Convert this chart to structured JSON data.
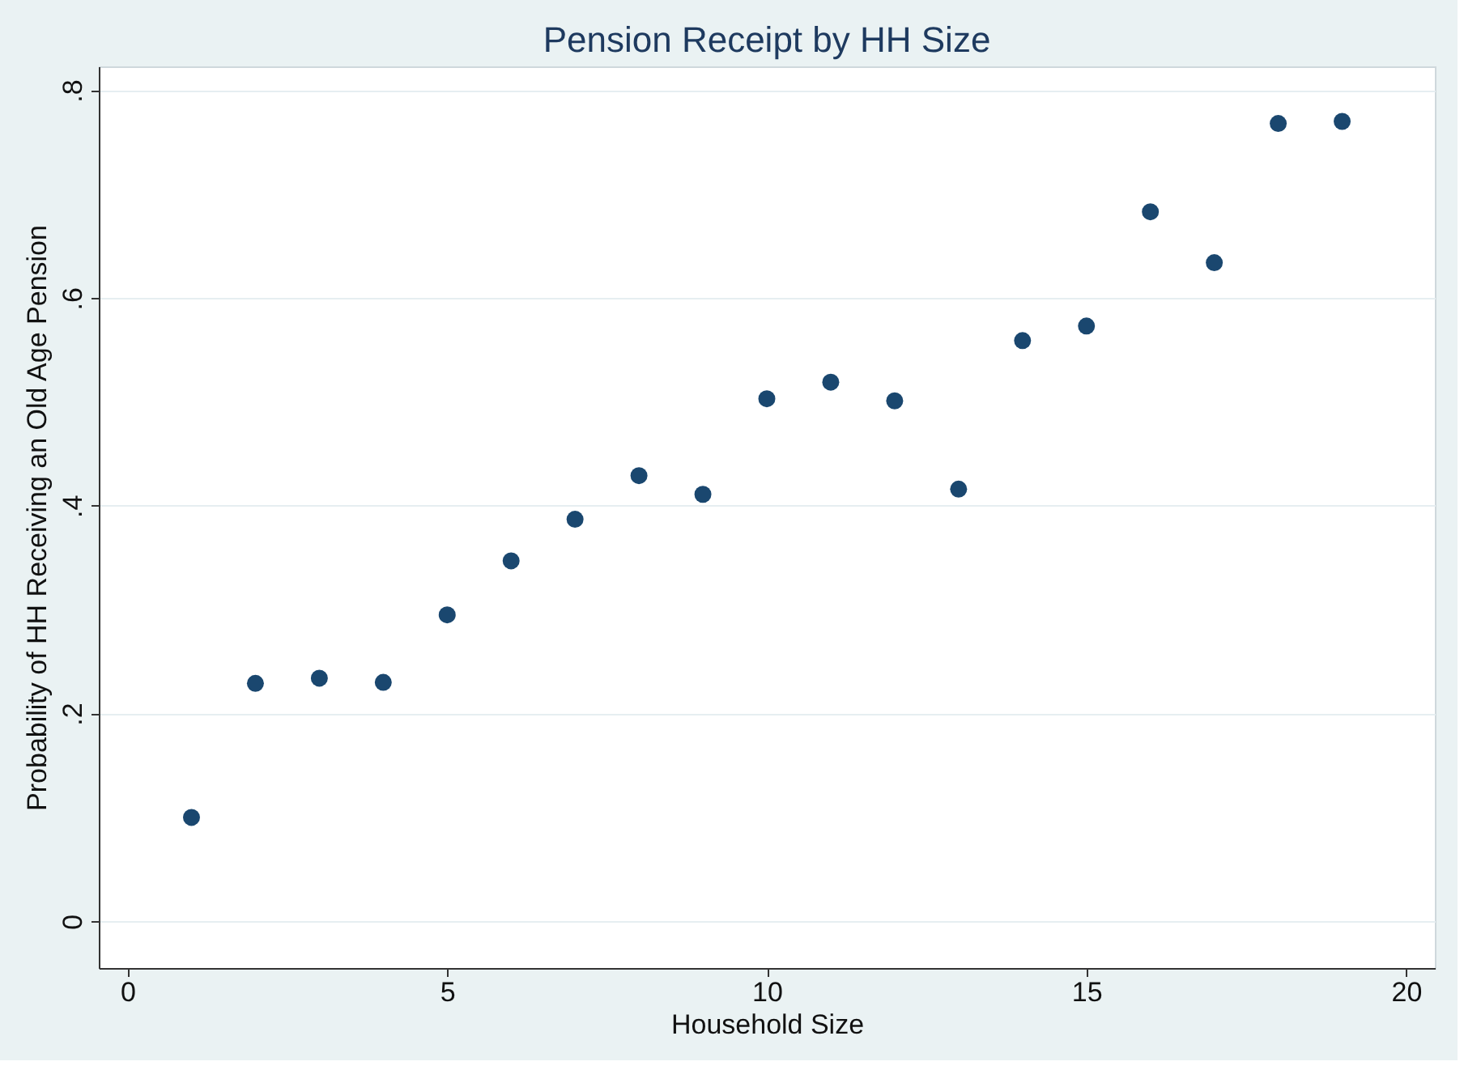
{
  "chart_data": {
    "type": "scatter",
    "title": "Pension Receipt by HH Size",
    "xlabel": "Household Size",
    "ylabel": "Probability of HH Receiving an Old Age Pension",
    "x": [
      1,
      2,
      3,
      4,
      5,
      6,
      7,
      8,
      9,
      10,
      11,
      12,
      13,
      14,
      15,
      16,
      17,
      18,
      19
    ],
    "series": [
      {
        "color": "#1a476f",
        "values": [
          0.1,
          0.229,
          0.234,
          0.23,
          0.295,
          0.347,
          0.387,
          0.429,
          0.411,
          0.503,
          0.519,
          0.501,
          0.416,
          0.559,
          0.573,
          0.683,
          0.634,
          0.768,
          0.77
        ]
      }
    ],
    "xlim": [
      -0.45,
      20.45
    ],
    "ylim": [
      -0.045,
      0.823
    ],
    "xticks": [
      0,
      5,
      10,
      15,
      20
    ],
    "yticks": [
      0,
      {
        "value": 0.2,
        "label": ".2"
      },
      {
        "value": 0.4,
        "label": ".4"
      },
      {
        "value": 0.6,
        "label": ".6"
      },
      {
        "value": 0.8,
        "label": ".8"
      }
    ],
    "grid": "y",
    "marker": "circle",
    "legend": false
  }
}
